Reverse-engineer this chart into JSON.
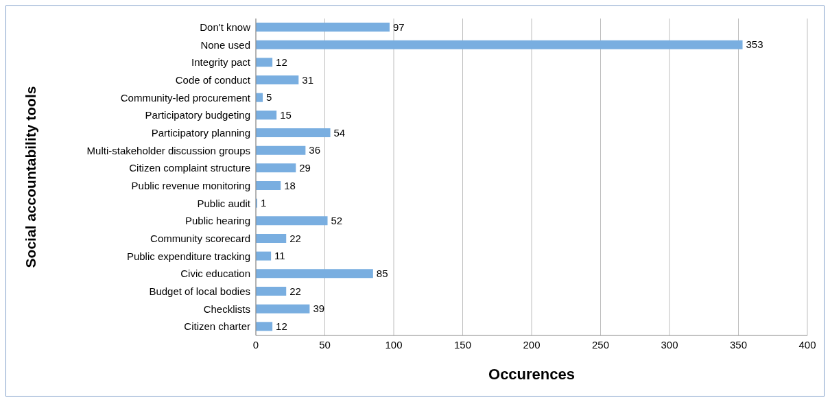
{
  "chart_data": {
    "type": "bar",
    "orientation": "horizontal",
    "xlabel": "Occurences",
    "ylabel": "Social accountability tools",
    "categories": [
      "Don't know",
      "None used",
      "Integrity pact",
      "Code of conduct",
      "Community-led procurement",
      "Participatory budgeting",
      "Participatory planning",
      "Multi-stakeholder discussion groups",
      "Citizen complaint structure",
      "Public revenue monitoring",
      "Public audit",
      "Public hearing",
      "Community scorecard",
      "Public expenditure tracking",
      "Civic education",
      "Budget of local bodies",
      "Checklists",
      "Citizen charter"
    ],
    "values": [
      97,
      353,
      12,
      31,
      5,
      15,
      54,
      36,
      29,
      18,
      1,
      52,
      22,
      11,
      85,
      22,
      39,
      12
    ],
    "color": "#79aee0",
    "xlim": [
      0,
      400
    ],
    "xticks": [
      0,
      50,
      100,
      150,
      200,
      250,
      300,
      350,
      400
    ],
    "grid": "x",
    "data_labels": true
  }
}
